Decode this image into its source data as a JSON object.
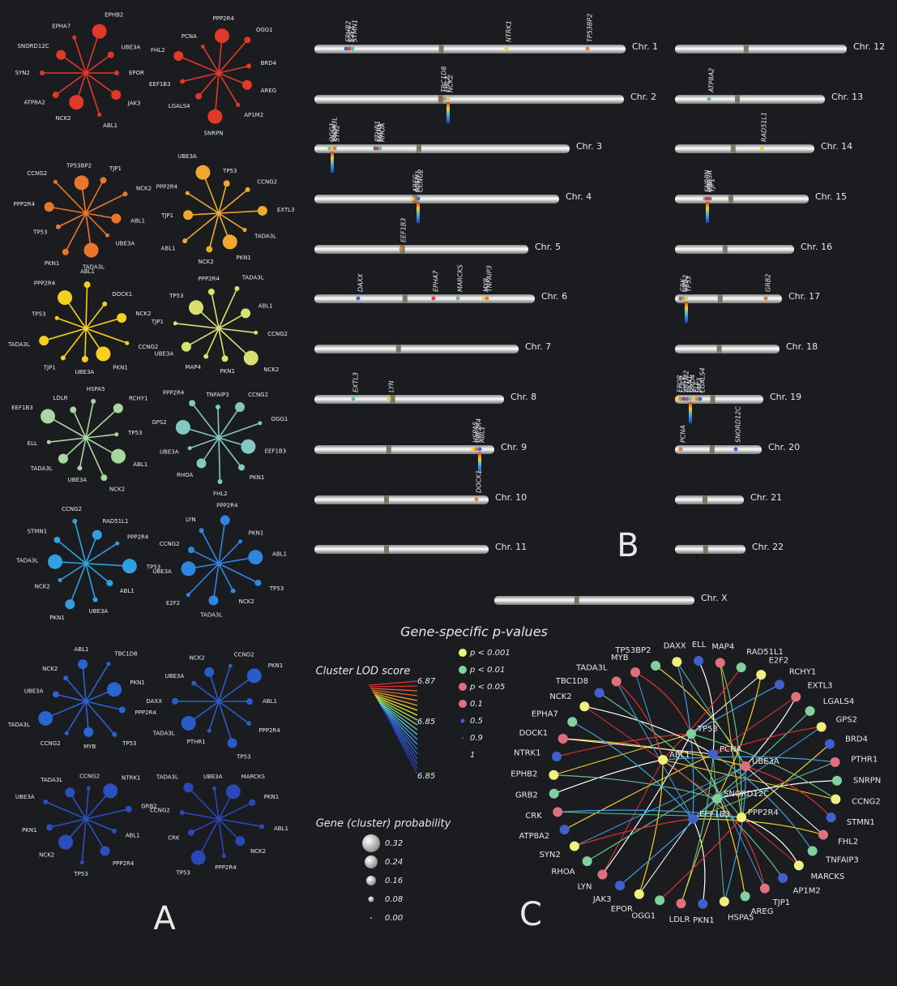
{
  "panels": {
    "a": "A",
    "b": "B",
    "c": "C"
  },
  "networks": [
    {
      "labels": [
        "EPOR",
        "JAK3",
        "ABL1",
        "NCK2",
        "ATP8A2",
        "SYN2",
        "SNORD12C",
        "EPHA7",
        "EPHB2",
        "UBE3A"
      ]
    },
    {
      "labels": [
        "AREG",
        "AP1M2",
        "SNRPN",
        "LGALS4",
        "EEF1B3",
        "FHL2",
        "PCNA",
        "PPP2R4",
        "OGG1",
        "BRD4"
      ]
    },
    {
      "labels": [
        "UBE3A",
        "TADA3L",
        "PKN1",
        "TP53",
        "PPP2R4",
        "CCNG2",
        "TP53BP2",
        "TJP1",
        "NCK2",
        "ABL1"
      ]
    },
    {
      "labels": [
        "PKN1",
        "NCK2",
        "ABL1",
        "TJP1",
        "PPP2R4",
        "UBE3A",
        "TP53",
        "CCNG2",
        "EXTL3",
        "TADA3L"
      ]
    },
    {
      "labels": [
        "UBE3A",
        "TJP1",
        "TADA3L",
        "TP53",
        "PPP2R4",
        "ABL1",
        "DOCK1",
        "NCK2",
        "CCNG2",
        "PKN1"
      ]
    },
    {
      "labels": [
        "MAP4",
        "UBE3A",
        "TJP1",
        "TP53",
        "PPP2R4",
        "TADA3L",
        "ABL1",
        "CCNG2",
        "NCK2",
        "PKN1"
      ]
    },
    {
      "labels": [
        "TADA3L",
        "ELL",
        "EEF1B3",
        "LDLR",
        "HSPA5",
        "RCHY1",
        "TP53",
        "ABL1",
        "NCK2",
        "UBE3A"
      ]
    },
    {
      "labels": [
        "UBE3A",
        "GPS2",
        "PPP2R4",
        "TNFAIP3",
        "CCNG2",
        "OGG1",
        "EEF1B3",
        "PKN1",
        "FHL2",
        "RHOA"
      ]
    },
    {
      "labels": [
        "TADA3L",
        "STMN1",
        "CCNG2",
        "RAD51L1",
        "PPP2R4",
        "TP53",
        "ABL1",
        "UBE3A",
        "PKN1",
        "NCK2"
      ]
    },
    {
      "labels": [
        "CCNG2",
        "LYN",
        "PPP2R4",
        "PKN1",
        "ABL1",
        "TP53",
        "NCK2",
        "TADA3L",
        "E2F2",
        "UBE3A"
      ]
    },
    {
      "labels": [
        "NCK2",
        "ABL1",
        "TBC1D8",
        "PKN1",
        "PPP2R4",
        "TP53",
        "MYB",
        "CCNG2",
        "TADA3L",
        "UBE3A"
      ]
    },
    {
      "labels": [
        "NCK2",
        "CCNG2",
        "PKN1",
        "ABL1",
        "PPP2R4",
        "TP53",
        "PTHR1",
        "TADA3L",
        "DAXX",
        "UBE3A"
      ]
    },
    {
      "labels": [
        "CCNG2",
        "NTRK1",
        "GRB2",
        "ABL1",
        "PPP2R4",
        "TP53",
        "NCK2",
        "PKN1",
        "UBE3A",
        "TADA3L"
      ]
    },
    {
      "labels": [
        "MARCKS",
        "PKN1",
        "ABL1",
        "NCK2",
        "PPP2R4",
        "TP53",
        "CRK",
        "CCNG2",
        "TADA3L",
        "UBE3A"
      ]
    }
  ],
  "chromosomes": [
    {
      "name": "Chr. 1",
      "genes": [
        "EPHB2",
        "E2F2",
        "STMN1",
        "NTRK1",
        "TP53BP2"
      ]
    },
    {
      "name": "Chr. 2",
      "genes": [
        "TBC1D8",
        "FHL2",
        "NCK2"
      ]
    },
    {
      "name": "Chr. 3",
      "genes": [
        "OGG1",
        "TADA3L",
        "SYN2",
        "PTHR1",
        "MAP4",
        "RHOA"
      ]
    },
    {
      "name": "Chr. 4",
      "genes": [
        "AREG",
        "RCHY1",
        "CCNG2"
      ]
    },
    {
      "name": "Chr. 5",
      "genes": [
        "EEF1B3"
      ]
    },
    {
      "name": "Chr. 6",
      "genes": [
        "DAXX",
        "EPHA7",
        "MARCKS",
        "MYB",
        "TNFAIP3"
      ]
    },
    {
      "name": "Chr. 7",
      "genes": []
    },
    {
      "name": "Chr. 8",
      "genes": [
        "EXTL3",
        "LYN"
      ]
    },
    {
      "name": "Chr. 9",
      "genes": [
        "HSPA5",
        "PPP2R4",
        "ABL1"
      ]
    },
    {
      "name": "Chr. 10",
      "genes": [
        "DOCK1"
      ]
    },
    {
      "name": "Chr. 11",
      "genes": []
    },
    {
      "name": "Chr. 12",
      "genes": []
    },
    {
      "name": "Chr. 13",
      "genes": [
        "ATP8A2"
      ]
    },
    {
      "name": "Chr. 14",
      "genes": [
        "RAD51L1"
      ]
    },
    {
      "name": "Chr. 15",
      "genes": [
        "SNRPN",
        "UBE3A",
        "TJP1"
      ]
    },
    {
      "name": "Chr. 16",
      "genes": []
    },
    {
      "name": "Chr. 17",
      "genes": [
        "CRK",
        "GPS2",
        "TP53",
        "GRB2"
      ]
    },
    {
      "name": "Chr. 18",
      "genes": []
    },
    {
      "name": "Chr. 19",
      "genes": [
        "EPOR",
        "LDLR",
        "AP1M2",
        "PKN1",
        "BRD4",
        "ELL",
        "JAK3",
        "LGALS4"
      ]
    },
    {
      "name": "Chr. 20",
      "genes": [
        "PCNA",
        "SNORD12C"
      ]
    },
    {
      "name": "Chr. 21",
      "genes": []
    },
    {
      "name": "Chr. 22",
      "genes": []
    },
    {
      "name": "Chr. X",
      "genes": []
    }
  ],
  "legend": {
    "pvalue_title": "Gene-specific p-values",
    "pvalue_items": [
      "p < 0.001",
      "p < 0.01",
      "p < 0.05",
      "0.1",
      "0.5",
      "0.9",
      "1"
    ],
    "lod_title": "Cluster LOD score",
    "lod_ticks": [
      "6.87",
      "6.85",
      "6.85"
    ],
    "prob_title": "Gene (cluster) probability",
    "prob_ticks": [
      "0.32",
      "0.24",
      "0.16",
      "0.08",
      "0.00"
    ]
  },
  "circle_network": {
    "hub_nodes": [
      "TP53",
      "ABL1",
      "PCNA",
      "UBE3A",
      "SNORD12C",
      "PPP2R4",
      "EEF1B3"
    ],
    "outer_nodes": [
      "MYB",
      "TP53BP2",
      "DAXX",
      "ELL",
      "MAP4",
      "RAD51L1",
      "E2F2",
      "RCHY1",
      "EXTL3",
      "LGALS4",
      "GPS2",
      "BRD4",
      "PTHR1",
      "SNRPN",
      "CCNG2",
      "STMN1",
      "FHL2",
      "TNFAIP3",
      "MARCKS",
      "AP1M2",
      "TJP1",
      "AREG",
      "HSPA5",
      "PKN1",
      "LDLR",
      "OGG1",
      "EPOR",
      "JAK3",
      "LYN",
      "RHOA",
      "SYN2",
      "ATP8A2",
      "CRK",
      "GRB2",
      "EPHB2",
      "NTRK1",
      "DOCK1",
      "EPHA7",
      "NCK2",
      "TBC1D8",
      "TADA3L"
    ]
  }
}
